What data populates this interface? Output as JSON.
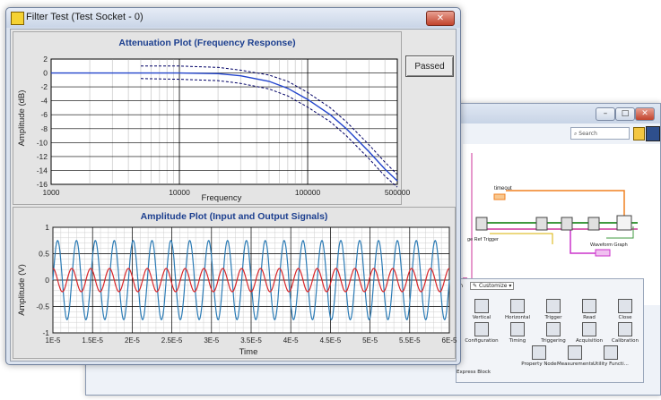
{
  "window": {
    "title": "Filter Test (Test Socket - 0)",
    "close_label": "✕"
  },
  "status": {
    "label": "Passed"
  },
  "attenuation_plot": {
    "title": "Attenuation Plot (Frequency Response)",
    "xlabel": "Frequency",
    "ylabel": "Amplitude (dB)",
    "x_ticks": [
      "1000",
      "10000",
      "100000",
      "500000"
    ],
    "y_ticks": [
      "2",
      "0",
      "-2",
      "-4",
      "-6",
      "-8",
      "-10",
      "-12",
      "-14",
      "-16"
    ]
  },
  "amplitude_plot": {
    "title": "Amplitude Plot (Input and Output Signals)",
    "xlabel": "Time",
    "ylabel": "Amplitude (V)",
    "x_ticks": [
      "1E-5",
      "1.5E-5",
      "2E-5",
      "2.5E-5",
      "3E-5",
      "3.5E-5",
      "4E-5",
      "4.5E-5",
      "5E-5",
      "5.5E-5",
      "6E-5"
    ],
    "y_ticks": [
      "1",
      "0.5",
      "0",
      "-0.5",
      "-1"
    ]
  },
  "block_diagram": {
    "search_placeholder": "Search",
    "labels": {
      "timeout": "timeout",
      "trigger": "ge Ref Trigger",
      "waveform": "Waveform Graph"
    },
    "palette": {
      "tab_left": "ch",
      "tab_customize": "Customize",
      "row1": [
        "Vertical",
        "Horizontal",
        "Trigger",
        "Read",
        "Close"
      ],
      "row2": [
        "Configuration",
        "Timing",
        "Triggering",
        "Acquisition",
        "Calibration"
      ],
      "row3": [
        "Property Node",
        "Measurements",
        "Utility Functi..."
      ],
      "footer": "Express Block"
    }
  },
  "chart_data": [
    {
      "type": "line",
      "title": "Attenuation Plot (Frequency Response)",
      "xlabel": "Frequency",
      "ylabel": "Amplitude (dB)",
      "xscale": "log",
      "xlim": [
        1000,
        500000
      ],
      "ylim": [
        -16,
        2
      ],
      "grid": true,
      "series": [
        {
          "style": "solid",
          "color": "#2244cc",
          "x": [
            1000,
            5000,
            10000,
            20000,
            30000,
            50000,
            70000,
            100000,
            150000,
            200000,
            300000,
            400000,
            500000
          ],
          "y": [
            0,
            0,
            0,
            -0.1,
            -0.4,
            -1.2,
            -2.2,
            -3.8,
            -6.0,
            -8.0,
            -11.3,
            -13.8,
            -15.5
          ]
        },
        {
          "style": "dashed",
          "color": "#000066",
          "x": [
            5000,
            10000,
            20000,
            30000,
            50000,
            70000,
            100000,
            150000,
            200000,
            300000,
            400000,
            500000
          ],
          "y": [
            1.0,
            1.0,
            0.8,
            0.4,
            -0.3,
            -1.2,
            -2.8,
            -5.0,
            -7.0,
            -10.3,
            -12.8,
            -14.6
          ]
        },
        {
          "style": "dashed",
          "color": "#000066",
          "x": [
            5000,
            10000,
            20000,
            30000,
            50000,
            70000,
            100000,
            150000,
            200000,
            300000,
            400000,
            500000
          ],
          "y": [
            -0.8,
            -0.9,
            -1.1,
            -1.5,
            -2.3,
            -3.3,
            -4.9,
            -7.0,
            -9.0,
            -12.3,
            -14.8,
            -16.4
          ]
        }
      ]
    },
    {
      "type": "line",
      "title": "Amplitude Plot (Input and Output Signals)",
      "xlabel": "Time",
      "ylabel": "Amplitude (V)",
      "xlim": [
        1e-05,
        6e-05
      ],
      "ylim": [
        -1,
        1
      ],
      "grid": true,
      "series": [
        {
          "color": "#2b7bb5",
          "waveform": "sine",
          "amplitude": 0.75,
          "cycles": 21
        },
        {
          "color": "#d8262a",
          "waveform": "sine",
          "amplitude": 0.22,
          "cycles": 21,
          "phase_offset_cycles": 0.25
        }
      ]
    }
  ]
}
